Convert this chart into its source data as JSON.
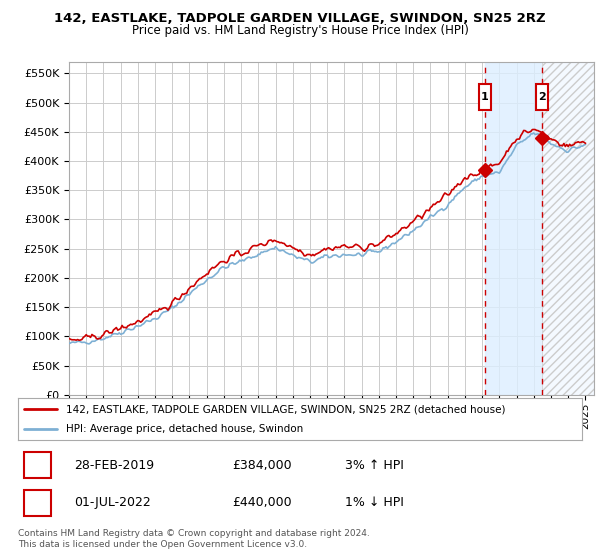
{
  "title": "142, EASTLAKE, TADPOLE GARDEN VILLAGE, SWINDON, SN25 2RZ",
  "subtitle": "Price paid vs. HM Land Registry's House Price Index (HPI)",
  "ylabel_ticks": [
    "£0",
    "£50K",
    "£100K",
    "£150K",
    "£200K",
    "£250K",
    "£300K",
    "£350K",
    "£400K",
    "£450K",
    "£500K",
    "£550K"
  ],
  "ytick_values": [
    0,
    50000,
    100000,
    150000,
    200000,
    250000,
    300000,
    350000,
    400000,
    450000,
    500000,
    550000
  ],
  "ylim": [
    0,
    570000
  ],
  "xlim_start": 1995.0,
  "xlim_end": 2025.5,
  "transaction1_x": 2019.167,
  "transaction1_y": 384000,
  "transaction2_x": 2022.5,
  "transaction2_y": 440000,
  "transaction1_date": "28-FEB-2019",
  "transaction1_price": "£384,000",
  "transaction1_hpi": "3% ↑ HPI",
  "transaction2_date": "01-JUL-2022",
  "transaction2_price": "£440,000",
  "transaction2_hpi": "1% ↓ HPI",
  "legend_line1": "142, EASTLAKE, TADPOLE GARDEN VILLAGE, SWINDON, SN25 2RZ (detached house)",
  "legend_line2": "HPI: Average price, detached house, Swindon",
  "footer1": "Contains HM Land Registry data © Crown copyright and database right 2024.",
  "footer2": "This data is licensed under the Open Government Licence v3.0.",
  "red_color": "#cc0000",
  "blue_color": "#7eb0d4",
  "background_color": "#ffffff",
  "grid_color": "#cccccc",
  "shade_color": "#ddeeff",
  "hatch_color": "#cccccc"
}
